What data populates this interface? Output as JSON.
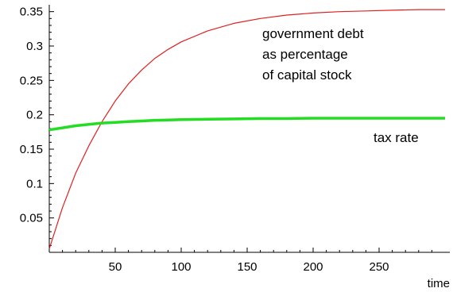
{
  "chart_data": {
    "type": "line",
    "title": "",
    "xlabel": "time",
    "ylabel": "",
    "xlim": [
      0,
      300
    ],
    "ylim": [
      0,
      0.36
    ],
    "x_ticks": [
      50,
      100,
      150,
      200,
      250
    ],
    "x_tick_labels": [
      "50",
      "100",
      "150",
      "200",
      "250"
    ],
    "y_ticks": [
      0.05,
      0.1,
      0.15,
      0.2,
      0.25,
      0.3,
      0.35
    ],
    "y_tick_labels": [
      "0.05",
      "0.1",
      "0.15",
      "0.2",
      "0.25",
      "0.3",
      "0.35"
    ],
    "grid": false,
    "series": [
      {
        "color": "#e02020",
        "x": [
          0,
          10,
          20,
          30,
          40,
          50,
          60,
          70,
          80,
          90,
          100,
          120,
          140,
          160,
          180,
          200,
          220,
          240,
          260,
          280,
          300
        ],
        "y": [
          0.005,
          0.065,
          0.115,
          0.155,
          0.19,
          0.22,
          0.245,
          0.265,
          0.282,
          0.295,
          0.306,
          0.322,
          0.333,
          0.34,
          0.345,
          0.348,
          0.35,
          0.351,
          0.352,
          0.353,
          0.353
        ]
      },
      {
        "color": "#22dd22",
        "x": [
          0,
          10,
          20,
          30,
          40,
          50,
          60,
          70,
          80,
          90,
          100,
          120,
          140,
          160,
          180,
          200,
          220,
          240,
          260,
          280,
          300
        ],
        "y": [
          0.178,
          0.181,
          0.184,
          0.186,
          0.188,
          0.189,
          0.19,
          0.191,
          0.192,
          0.1925,
          0.193,
          0.1935,
          0.194,
          0.1945,
          0.1945,
          0.195,
          0.195,
          0.195,
          0.195,
          0.195,
          0.195
        ]
      }
    ],
    "annotations": [
      {
        "lines": [
          "government debt",
          "as percentage",
          "of capital stock"
        ],
        "series": 0
      },
      {
        "lines": [
          "tax rate"
        ],
        "series": 1
      }
    ]
  }
}
